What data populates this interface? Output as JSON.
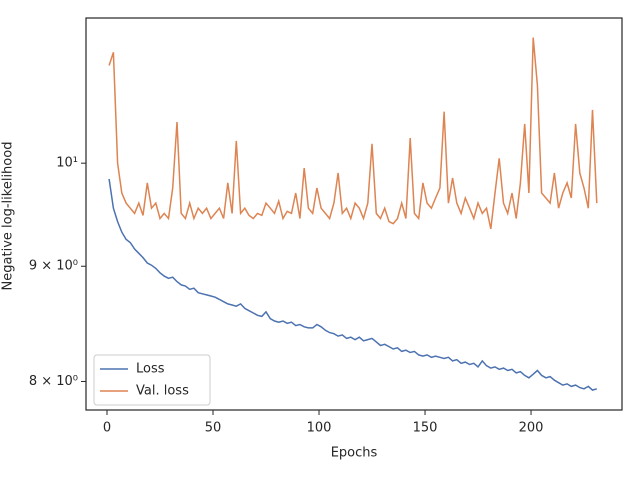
{
  "chart_data": {
    "type": "line",
    "xlabel": "Epochs",
    "ylabel": "Negative log-likelihood",
    "yscale": "log",
    "legend": "lower left",
    "xlim": [
      -9.9,
      242.9
    ],
    "xticks": [
      0,
      50,
      100,
      150,
      200
    ],
    "ylim": [
      7.77,
      11.6
    ],
    "yticks": [
      {
        "value": 8,
        "label": "8 × 10⁰"
      },
      {
        "value": 9,
        "label": "9 × 10⁰"
      },
      {
        "value": 10,
        "label": "10¹"
      }
    ],
    "x": [
      1,
      3,
      5,
      7,
      9,
      11,
      13,
      15,
      17,
      19,
      21,
      23,
      25,
      27,
      29,
      31,
      33,
      35,
      37,
      39,
      41,
      43,
      45,
      47,
      49,
      51,
      53,
      55,
      57,
      59,
      61,
      63,
      65,
      67,
      69,
      71,
      73,
      75,
      77,
      79,
      81,
      83,
      85,
      87,
      89,
      91,
      93,
      95,
      97,
      99,
      101,
      103,
      105,
      107,
      109,
      111,
      113,
      115,
      117,
      119,
      121,
      123,
      125,
      127,
      129,
      131,
      133,
      135,
      137,
      139,
      141,
      143,
      145,
      147,
      149,
      151,
      153,
      155,
      157,
      159,
      161,
      163,
      165,
      167,
      169,
      171,
      173,
      175,
      177,
      179,
      181,
      183,
      185,
      187,
      189,
      191,
      193,
      195,
      197,
      199,
      201,
      203,
      205,
      207,
      209,
      211,
      213,
      215,
      217,
      219,
      221,
      223,
      225,
      227,
      229,
      231
    ],
    "series": [
      {
        "name": "Loss",
        "color": "#4c72b0",
        "values": [
          9.84,
          9.55,
          9.42,
          9.32,
          9.25,
          9.22,
          9.16,
          9.12,
          9.08,
          9.03,
          9.01,
          8.98,
          8.94,
          8.91,
          8.89,
          8.9,
          8.86,
          8.83,
          8.82,
          8.79,
          8.8,
          8.76,
          8.75,
          8.74,
          8.73,
          8.72,
          8.7,
          8.68,
          8.66,
          8.65,
          8.64,
          8.66,
          8.62,
          8.6,
          8.58,
          8.56,
          8.55,
          8.59,
          8.53,
          8.51,
          8.5,
          8.51,
          8.49,
          8.5,
          8.47,
          8.48,
          8.46,
          8.45,
          8.45,
          8.48,
          8.46,
          8.43,
          8.41,
          8.4,
          8.38,
          8.39,
          8.36,
          8.37,
          8.35,
          8.37,
          8.34,
          8.35,
          8.36,
          8.33,
          8.3,
          8.31,
          8.29,
          8.27,
          8.28,
          8.25,
          8.26,
          8.24,
          8.25,
          8.22,
          8.21,
          8.22,
          8.2,
          8.21,
          8.2,
          8.19,
          8.2,
          8.17,
          8.18,
          8.15,
          8.16,
          8.14,
          8.15,
          8.12,
          8.17,
          8.13,
          8.11,
          8.12,
          8.1,
          8.11,
          8.09,
          8.1,
          8.07,
          8.08,
          8.05,
          8.03,
          8.06,
          8.09,
          8.05,
          8.03,
          8.04,
          8.01,
          7.99,
          7.97,
          7.98,
          7.96,
          7.97,
          7.95,
          7.94,
          7.96,
          7.93,
          7.94
        ]
      },
      {
        "name": "Val. loss",
        "color": "#dd8452",
        "values": [
          11.05,
          11.2,
          10.0,
          9.7,
          9.6,
          9.55,
          9.5,
          9.6,
          9.48,
          9.8,
          9.55,
          9.6,
          9.45,
          9.5,
          9.45,
          9.75,
          10.43,
          9.5,
          9.45,
          9.6,
          9.45,
          9.55,
          9.5,
          9.55,
          9.45,
          9.5,
          9.55,
          9.45,
          9.8,
          9.5,
          10.23,
          9.5,
          9.55,
          9.48,
          9.45,
          9.5,
          9.48,
          9.6,
          9.55,
          9.5,
          9.62,
          9.45,
          9.52,
          9.5,
          9.7,
          9.45,
          9.95,
          9.55,
          9.5,
          9.75,
          9.55,
          9.5,
          9.45,
          9.6,
          9.9,
          9.5,
          9.55,
          9.45,
          9.6,
          9.55,
          9.45,
          9.6,
          10.2,
          9.5,
          9.45,
          9.55,
          9.42,
          9.4,
          9.45,
          9.6,
          9.45,
          10.26,
          9.5,
          9.45,
          9.8,
          9.6,
          9.55,
          9.65,
          9.75,
          10.54,
          9.6,
          9.85,
          9.6,
          9.5,
          9.65,
          9.55,
          9.45,
          9.6,
          9.5,
          9.55,
          9.35,
          9.7,
          10.05,
          9.6,
          9.5,
          9.7,
          9.45,
          9.8,
          10.41,
          9.7,
          11.37,
          10.83,
          9.7,
          9.65,
          9.6,
          9.9,
          9.55,
          9.7,
          9.8,
          9.65,
          10.41,
          9.9,
          9.75,
          9.55,
          10.56,
          9.6
        ]
      }
    ]
  }
}
